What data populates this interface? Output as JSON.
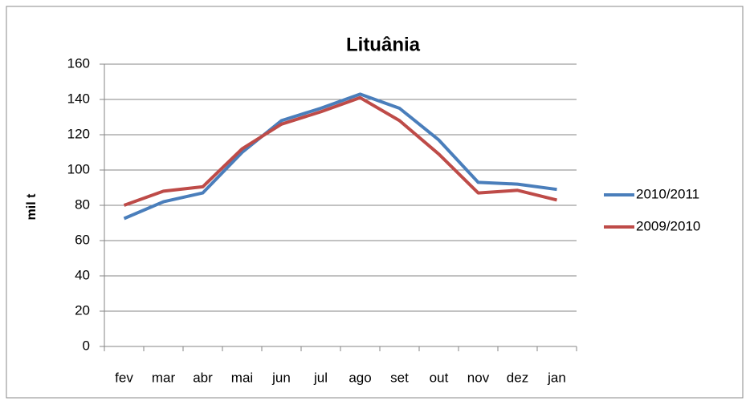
{
  "chart_data": {
    "type": "line",
    "title": "Lituânia",
    "y_label": "mil t",
    "categories": [
      "fev",
      "mar",
      "abr",
      "mai",
      "jun",
      "jul",
      "ago",
      "set",
      "out",
      "nov",
      "dez",
      "jan"
    ],
    "series": [
      {
        "name": "2010/2011",
        "color": "#4a7ebb",
        "values": [
          72.5,
          82,
          87,
          110,
          128,
          135,
          143,
          135,
          117,
          93,
          92,
          89
        ]
      },
      {
        "name": "2009/2010",
        "color": "#be4b48",
        "values": [
          80,
          88,
          90.5,
          112,
          126,
          133,
          141,
          128,
          109,
          87,
          88.5,
          83
        ]
      }
    ],
    "ylim": [
      0,
      160
    ],
    "yticks": [
      0,
      20,
      40,
      60,
      80,
      100,
      120,
      140,
      160
    ],
    "grid": true,
    "legend": "right"
  }
}
